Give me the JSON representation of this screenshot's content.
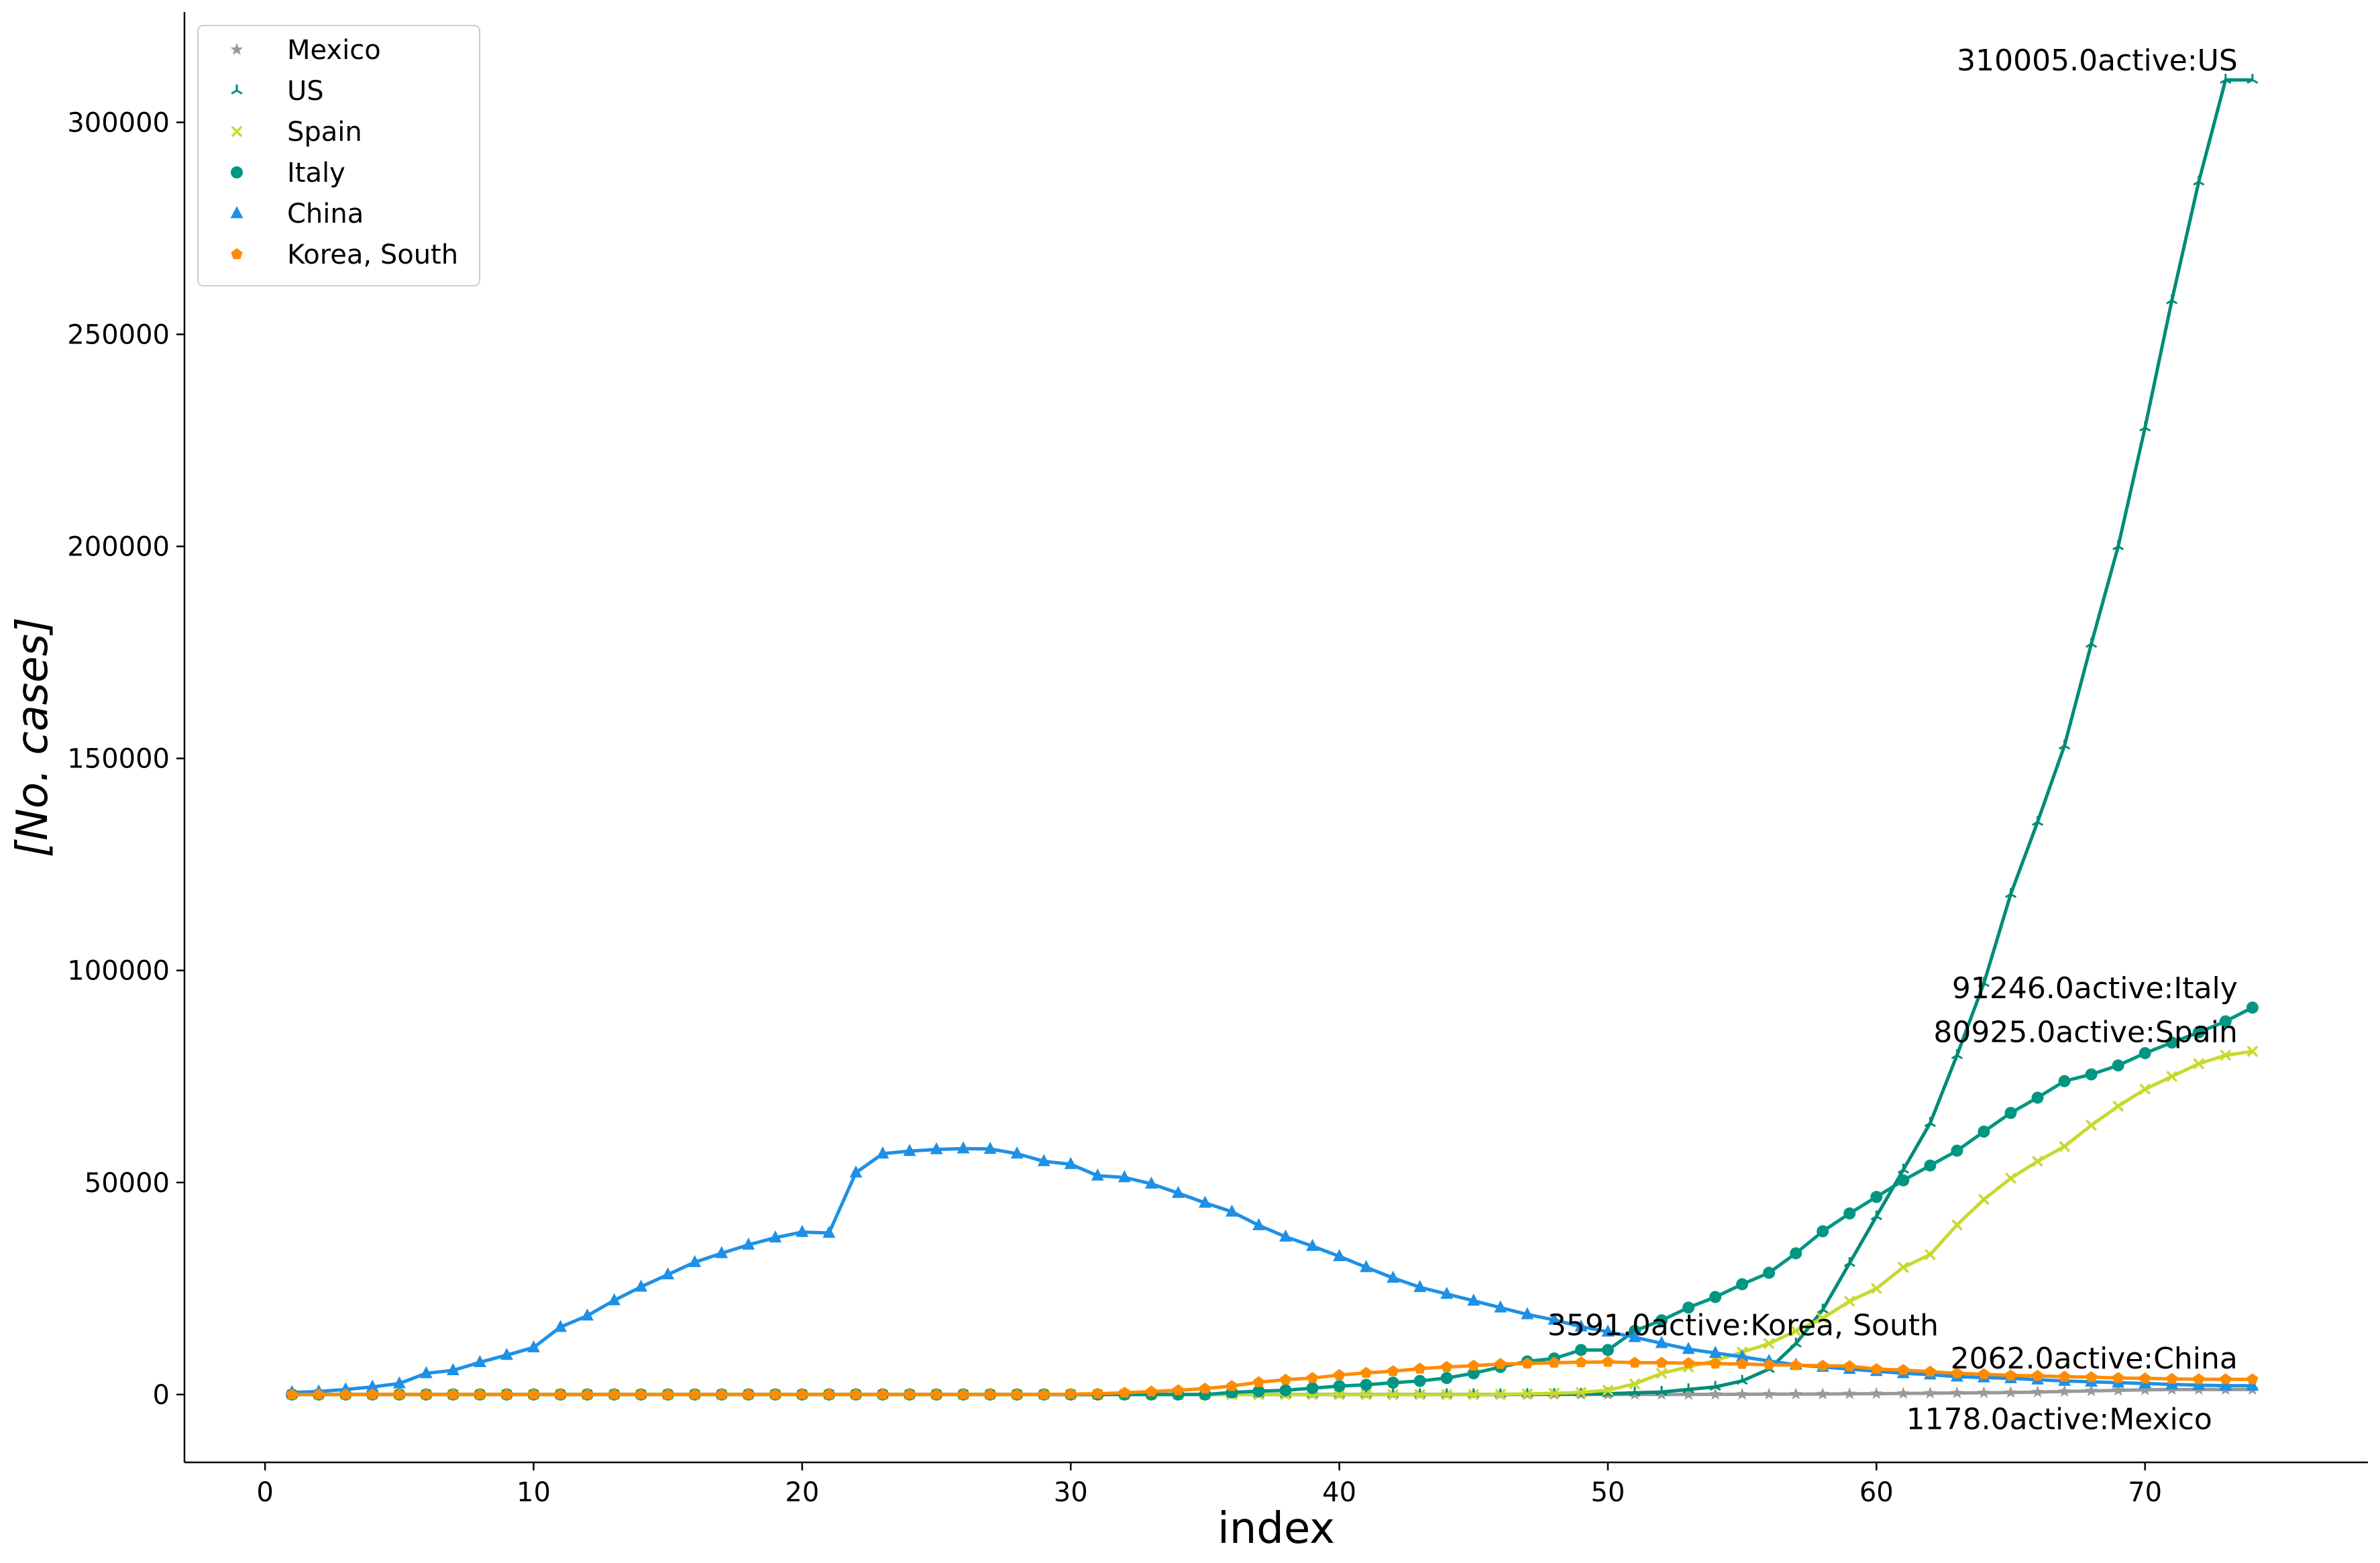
{
  "chart_data": {
    "type": "line",
    "xlabel": "index",
    "ylabel": "[No. cases]",
    "xlim": [
      -3,
      78.3
    ],
    "ylim": [
      -16000,
      326000
    ],
    "xticks": [
      0,
      10,
      20,
      30,
      40,
      50,
      60,
      70
    ],
    "yticks": [
      0,
      50000,
      100000,
      150000,
      200000,
      250000,
      300000
    ],
    "legend_position": "top-left",
    "grid": false,
    "series": [
      {
        "name": "Mexico",
        "color": "#999999",
        "marker": "star",
        "x_start": 1,
        "values": [
          0,
          0,
          0,
          0,
          0,
          0,
          0,
          0,
          0,
          0,
          0,
          0,
          0,
          0,
          0,
          0,
          0,
          0,
          0,
          0,
          0,
          0,
          0,
          0,
          0,
          0,
          0,
          0,
          0,
          0,
          0,
          0,
          0,
          0,
          0,
          0,
          0,
          0,
          0,
          0,
          0,
          0,
          0,
          0,
          0,
          0,
          5,
          6,
          7,
          7,
          8,
          12,
          26,
          41,
          53,
          82,
          93,
          118,
          164,
          203,
          251,
          316,
          367,
          405,
          475,
          585,
          717,
          848,
          993,
          1094,
          1178,
          1178,
          1178,
          1178
        ]
      },
      {
        "name": "US",
        "color": "#008b77",
        "marker": "tri",
        "x_start": 1,
        "values": [
          1,
          1,
          2,
          2,
          5,
          5,
          5,
          5,
          5,
          7,
          8,
          8,
          11,
          11,
          11,
          11,
          11,
          11,
          11,
          11,
          12,
          12,
          13,
          13,
          13,
          13,
          13,
          13,
          13,
          13,
          13,
          13,
          13,
          13,
          13,
          13,
          13,
          13,
          13,
          13,
          13,
          14,
          14,
          15,
          15,
          20,
          55,
          85,
          125,
          200,
          400,
          600,
          1200,
          1800,
          3200,
          6000,
          12000,
          20000,
          31000,
          42000,
          53000,
          64000,
          80000,
          97000,
          118000,
          135000,
          153000,
          177000,
          200000,
          228000,
          258000,
          286000,
          310005,
          310005
        ]
      },
      {
        "name": "Spain",
        "color": "#c8d92e",
        "marker": "x",
        "x_start": 1,
        "values": [
          0,
          0,
          0,
          0,
          0,
          0,
          0,
          0,
          0,
          0,
          0,
          0,
          0,
          0,
          0,
          0,
          0,
          0,
          0,
          0,
          0,
          0,
          0,
          0,
          0,
          0,
          0,
          0,
          0,
          0,
          0,
          0,
          0,
          0,
          0,
          0,
          0,
          0,
          0,
          0,
          0,
          0,
          0,
          0,
          0,
          50,
          150,
          300,
          500,
          1000,
          2500,
          5000,
          6500,
          8000,
          10000,
          12000,
          15000,
          18000,
          22000,
          25000,
          30000,
          33000,
          40000,
          46000,
          51000,
          55000,
          58500,
          63500,
          68000,
          72000,
          75000,
          78000,
          80000,
          80925
        ]
      },
      {
        "name": "Italy",
        "color": "#009682",
        "marker": "circle",
        "x_start": 1,
        "values": [
          0,
          0,
          0,
          0,
          0,
          0,
          0,
          0,
          0,
          0,
          0,
          0,
          0,
          0,
          0,
          0,
          0,
          0,
          0,
          0,
          0,
          0,
          0,
          0,
          0,
          0,
          0,
          0,
          0,
          0,
          0,
          0,
          0,
          0,
          0,
          500,
          800,
          1000,
          1500,
          2000,
          2300,
          2800,
          3200,
          3900,
          5000,
          6500,
          7800,
          8500,
          10500,
          10500,
          15000,
          17500,
          20500,
          23000,
          26000,
          28700,
          33300,
          38500,
          42700,
          46600,
          50500,
          54000,
          57500,
          62000,
          66400,
          70000,
          73900,
          75500,
          77600,
          80500,
          83000,
          85400,
          88000,
          91246
        ]
      },
      {
        "name": "China",
        "color": "#1e90e6",
        "marker": "triangle",
        "x_start": 1,
        "values": [
          503,
          700,
          1200,
          1800,
          2600,
          5000,
          5700,
          7600,
          9300,
          11100,
          15900,
          18600,
          22200,
          25400,
          28300,
          31200,
          33300,
          35300,
          37000,
          38300,
          38100,
          52300,
          56800,
          57400,
          57800,
          58000,
          57900,
          56800,
          55000,
          54300,
          51600,
          51200,
          49700,
          47500,
          45200,
          43100,
          39900,
          37200,
          35000,
          32600,
          30000,
          27500,
          25300,
          23700,
          22100,
          20500,
          18900,
          17600,
          16000,
          14800,
          13500,
          12100,
          10700,
          9800,
          8900,
          7900,
          7000,
          6500,
          6000,
          5500,
          5000,
          4700,
          4200,
          4000,
          3800,
          3500,
          3200,
          3000,
          2800,
          2600,
          2400,
          2200,
          2100,
          2062
        ]
      },
      {
        "name": "Korea, South",
        "color": "#ff8c00",
        "marker": "pentagon",
        "x_start": 1,
        "values": [
          0,
          0,
          0,
          0,
          0,
          0,
          0,
          0,
          0,
          0,
          0,
          0,
          0,
          0,
          0,
          0,
          0,
          0,
          0,
          0,
          0,
          0,
          0,
          0,
          0,
          0,
          0,
          0,
          0,
          100,
          200,
          400,
          700,
          1000,
          1400,
          2000,
          2900,
          3500,
          3900,
          4600,
          5100,
          5500,
          6100,
          6500,
          6800,
          7200,
          7300,
          7500,
          7600,
          7700,
          7500,
          7500,
          7400,
          7300,
          7200,
          7000,
          6900,
          6800,
          6700,
          6000,
          5800,
          5400,
          5000,
          4800,
          4500,
          4400,
          4200,
          4100,
          3900,
          3800,
          3700,
          3600,
          3591,
          3591
        ]
      }
    ],
    "annotations": [
      {
        "text": "310005.0active:US",
        "x": 74,
        "y": 310005,
        "anchor": "end",
        "dx": -22,
        "dy": -14
      },
      {
        "text": "91246.0active:Italy",
        "x": 74,
        "y": 91246,
        "anchor": "end",
        "dx": -22,
        "dy": -14
      },
      {
        "text": "80925.0active:Spain",
        "x": 74,
        "y": 80925,
        "anchor": "end",
        "dx": -22,
        "dy": -14
      },
      {
        "text": "3591.0active:Korea, South",
        "x": 48,
        "y": 14000,
        "anchor": "start",
        "dx": -10,
        "dy": 0
      },
      {
        "text": "2062.0active:China",
        "x": 74,
        "y": 2062,
        "anchor": "end",
        "dx": -22,
        "dy": -26
      },
      {
        "text": "1178.0active:Mexico",
        "x": 74,
        "y": -2500,
        "anchor": "end",
        "dx": -60,
        "dy": 36
      }
    ]
  }
}
